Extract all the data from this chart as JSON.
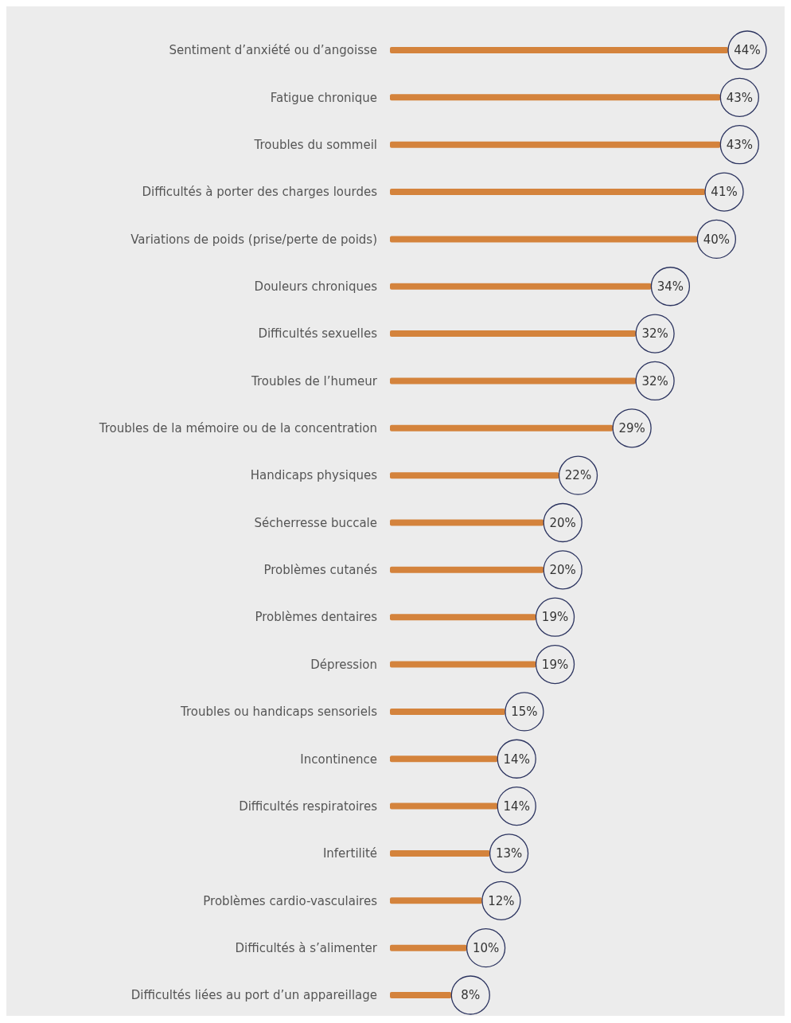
{
  "chart_data": {
    "type": "bar",
    "orientation": "horizontal",
    "color": "#d4833c",
    "categories": [
      "Sentiment d’anxiété ou d’angoisse",
      "Fatigue chronique",
      "Troubles du sommeil",
      "Difficultés à porter des charges lourdes",
      "Variations de poids (prise/perte de poids)",
      "Douleurs chroniques",
      "Difficultés sexuelles",
      "Troubles de l’humeur",
      "Troubles de la mémoire ou de la concentration",
      "Handicaps physiques",
      "Sécherresse buccale",
      "Problèmes cutanés",
      "Problèmes dentaires",
      "Dépression",
      "Troubles ou handicaps sensoriels",
      "Incontinence",
      "Difficultés respiratoires",
      "Infertilité",
      "Problèmes cardio-vasculaires",
      "Difficultés à s’alimenter",
      "Difficultés liées au port d’un appareillage"
    ],
    "values": [
      44,
      43,
      43,
      41,
      40,
      34,
      32,
      32,
      29,
      22,
      20,
      20,
      19,
      19,
      15,
      14,
      14,
      13,
      12,
      10,
      8
    ],
    "value_labels": [
      "44%",
      "43%",
      "43%",
      "41%",
      "40%",
      "34%",
      "32%",
      "32%",
      "29%",
      "22%",
      "20%",
      "20%",
      "19%",
      "19%",
      "15%",
      "14%",
      "14%",
      "13%",
      "12%",
      "10%",
      "8%"
    ]
  }
}
